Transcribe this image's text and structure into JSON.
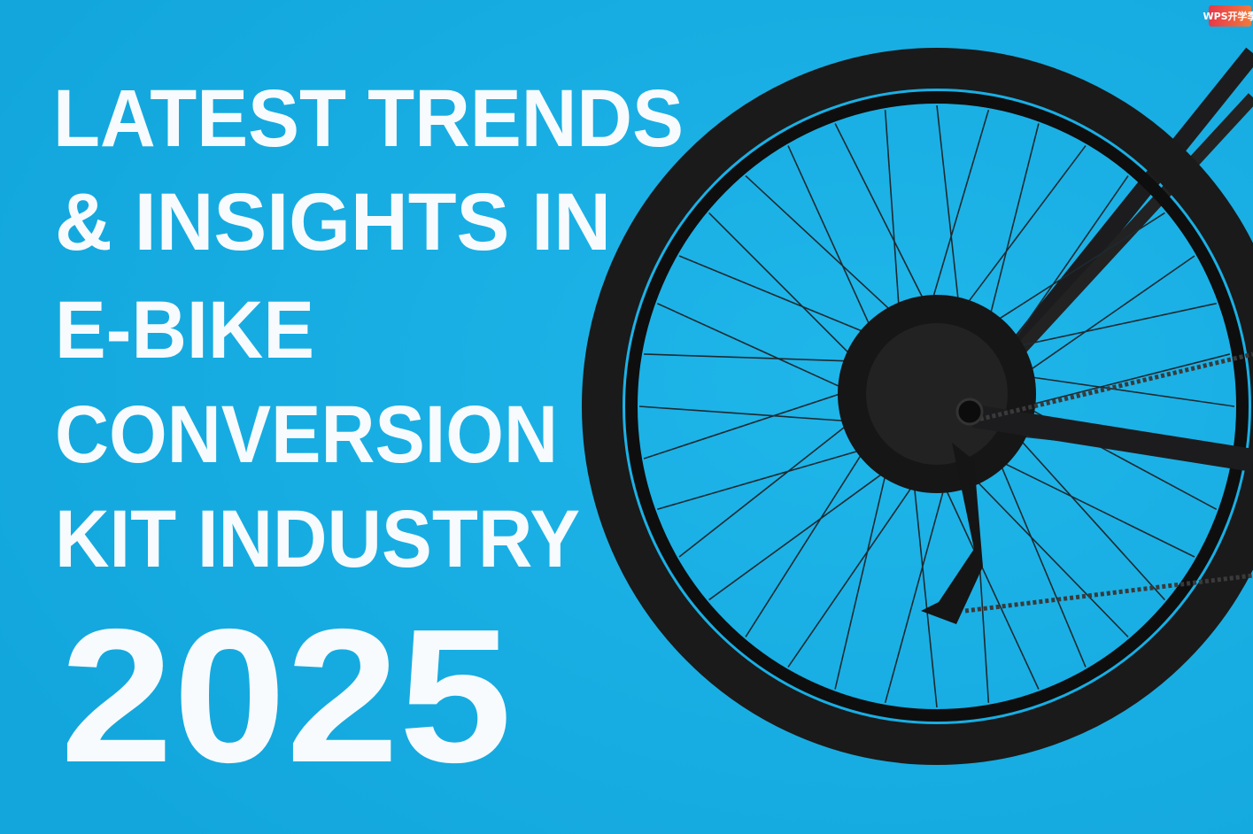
{
  "badge": "WPS开学季",
  "headline": {
    "lines": [
      "LATEST TRENDS",
      "& INSIGHTS IN",
      "E-BIKE",
      "CONVERSION",
      "KIT INDUSTRY"
    ],
    "year": "2025"
  }
}
